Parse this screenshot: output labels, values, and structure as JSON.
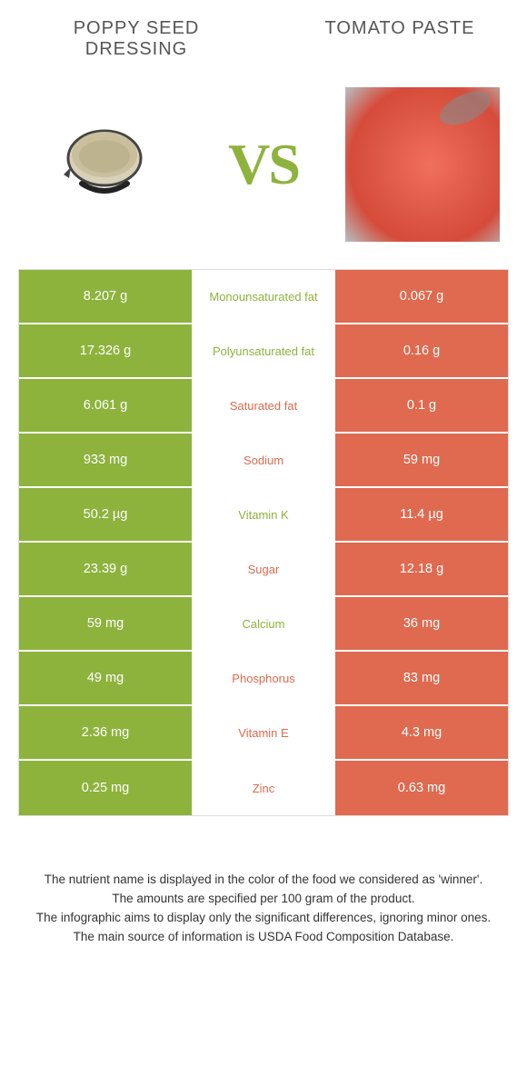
{
  "titles": {
    "left": "POPPY SEED DRESSING",
    "right": "TOMATO PASTE"
  },
  "vs": "VS",
  "colors": {
    "green": "#8db33d",
    "orange": "#df6a4f"
  },
  "rows": [
    {
      "left": "8.207 g",
      "mid": "Monounsaturated fat",
      "right": "0.067 g",
      "winnerColor": "green"
    },
    {
      "left": "17.326 g",
      "mid": "Polyunsaturated fat",
      "right": "0.16 g",
      "winnerColor": "green"
    },
    {
      "left": "6.061 g",
      "mid": "Saturated fat",
      "right": "0.1 g",
      "winnerColor": "orange"
    },
    {
      "left": "933 mg",
      "mid": "Sodium",
      "right": "59 mg",
      "winnerColor": "orange"
    },
    {
      "left": "50.2 µg",
      "mid": "Vitamin K",
      "right": "11.4 µg",
      "winnerColor": "green"
    },
    {
      "left": "23.39 g",
      "mid": "Sugar",
      "right": "12.18 g",
      "winnerColor": "orange"
    },
    {
      "left": "59 mg",
      "mid": "Calcium",
      "right": "36 mg",
      "winnerColor": "green"
    },
    {
      "left": "49 mg",
      "mid": "Phosphorus",
      "right": "83 mg",
      "winnerColor": "orange"
    },
    {
      "left": "2.36 mg",
      "mid": "Vitamin E",
      "right": "4.3 mg",
      "winnerColor": "orange"
    },
    {
      "left": "0.25 mg",
      "mid": "Zinc",
      "right": "0.63 mg",
      "winnerColor": "orange"
    }
  ],
  "footer": {
    "l1": "The nutrient name is displayed in the color of the food we considered as 'winner'.",
    "l2": "The amounts are specified per 100 gram of the product.",
    "l3": "The infographic aims to display only the significant differences, ignoring minor ones.",
    "l4": "The main source of information is USDA Food Composition Database."
  }
}
